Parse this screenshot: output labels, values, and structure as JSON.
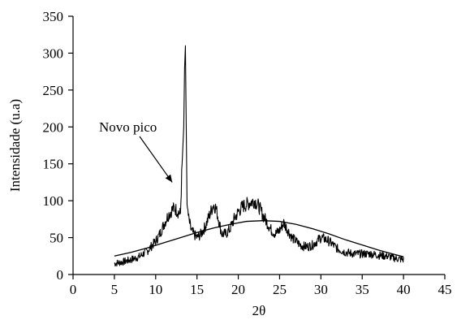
{
  "chart_data": {
    "type": "line",
    "title": "",
    "xlabel": "2θ",
    "ylabel": "Intensidade (u.a)",
    "xlim": [
      0,
      45
    ],
    "ylim": [
      0,
      350
    ],
    "x_ticks": [
      "0",
      "5",
      "10",
      "15",
      "20",
      "25",
      "30",
      "35",
      "40",
      "45"
    ],
    "y_ticks": [
      "0",
      "50",
      "100",
      "150",
      "200",
      "250",
      "300",
      "350"
    ],
    "grid": false,
    "legend": "none",
    "series": [
      {
        "style": "noisy",
        "color": "#000000",
        "x": [
          5,
          6,
          7,
          8,
          9,
          10,
          10.5,
          11,
          11.5,
          12,
          12.3,
          12.6,
          13,
          13.2,
          13.4,
          13.5,
          13.6,
          13.7,
          13.8,
          14,
          14.3,
          14.6,
          15,
          15.5,
          16,
          16.5,
          17,
          17.3,
          17.6,
          18,
          18.5,
          19,
          19.5,
          20,
          20.5,
          21,
          21.5,
          22,
          22.5,
          23,
          23.5,
          24,
          24.5,
          25,
          25.5,
          26,
          26.5,
          27,
          27.5,
          28,
          28.5,
          29,
          29.5,
          30,
          30.5,
          31,
          31.5,
          32,
          33,
          34,
          35,
          36,
          37,
          38,
          39,
          40
        ],
        "values": [
          15,
          17,
          20,
          24,
          32,
          45,
          55,
          68,
          80,
          88,
          90,
          86,
          82,
          150,
          200,
          280,
          310,
          200,
          95,
          75,
          60,
          55,
          50,
          55,
          65,
          80,
          95,
          90,
          75,
          55,
          55,
          62,
          75,
          85,
          92,
          95,
          98,
          100,
          92,
          80,
          70,
          60,
          55,
          60,
          70,
          60,
          50,
          45,
          40,
          38,
          38,
          40,
          45,
          50,
          48,
          45,
          40,
          35,
          30,
          28,
          28,
          28,
          26,
          25,
          22,
          20
        ]
      },
      {
        "style": "smooth",
        "color": "#000000",
        "x": [
          5,
          7,
          9,
          11,
          13,
          15,
          17,
          19,
          21,
          23,
          25,
          27,
          29,
          31,
          33,
          35,
          37,
          39,
          40
        ],
        "values": [
          25,
          30,
          36,
          43,
          50,
          57,
          63,
          68,
          72,
          73,
          72,
          68,
          62,
          55,
          47,
          40,
          33,
          27,
          24
        ]
      }
    ],
    "annotations": [
      {
        "text": "Novo pico",
        "arrow_to": {
          "x": 12,
          "y": 125
        }
      }
    ]
  }
}
